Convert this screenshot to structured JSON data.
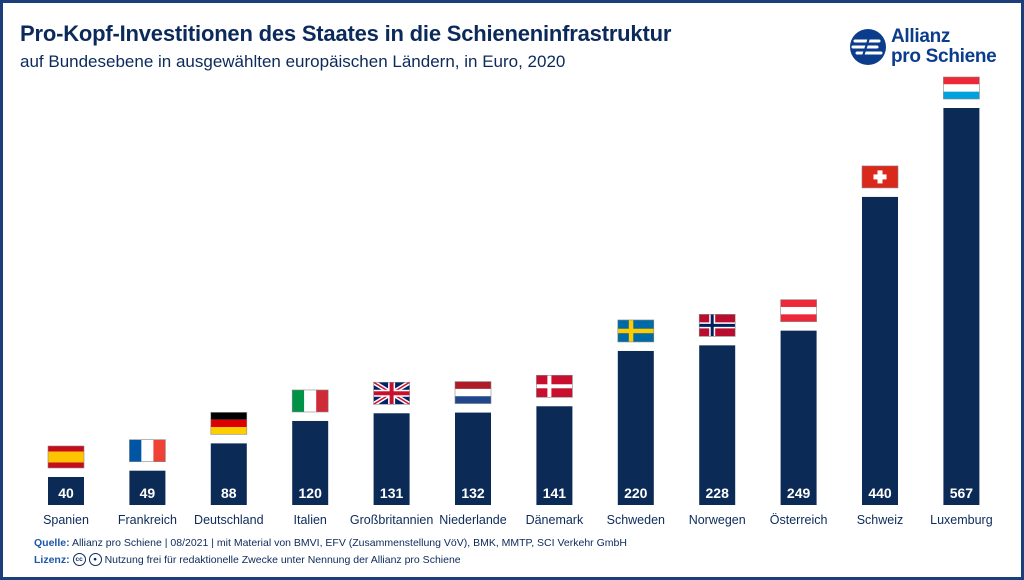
{
  "header": {
    "title": "Pro-Kopf-Investitionen des Staates in die Schieneninfrastruktur",
    "subtitle": "auf Bundesebene in ausgewählten europäischen Ländern, in Euro, 2020"
  },
  "logo": {
    "line1": "Allianz",
    "line2": "pro Schiene"
  },
  "chart_data": {
    "type": "bar",
    "title": "Pro-Kopf-Investitionen des Staates in die Schieneninfrastruktur",
    "subtitle": "auf Bundesebene in ausgewählten europäischen Ländern, in Euro, 2020",
    "categories": [
      "Spanien",
      "Frankreich",
      "Deutschland",
      "Italien",
      "Großbritannien",
      "Niederlande",
      "Dänemark",
      "Schweden",
      "Norwegen",
      "Österreich",
      "Schweiz",
      "Luxemburg"
    ],
    "values": [
      40,
      49,
      88,
      120,
      131,
      132,
      141,
      220,
      228,
      249,
      440,
      567
    ],
    "flags": [
      "spain-flag-icon",
      "france-flag-icon",
      "germany-flag-icon",
      "italy-flag-icon",
      "uk-flag-icon",
      "netherlands-flag-icon",
      "denmark-flag-icon",
      "sweden-flag-icon",
      "norway-flag-icon",
      "austria-flag-icon",
      "switzerland-flag-icon",
      "luxembourg-flag-icon"
    ],
    "xlabel": "",
    "ylabel": "",
    "ylim": [
      0,
      567
    ],
    "bar_color": "#0c2a56",
    "value_label_color": "#ffffff"
  },
  "footer": {
    "source_label": "Quelle:",
    "source_text": "Allianz pro Schiene | 08/2021 | mit Material von BMVI, EFV (Zusammenstellung VöV), BMK, MMTP, SCI Verkehr GmbH",
    "license_label": "Lizenz:",
    "license_text": "Nutzung frei für redaktionelle Zwecke unter Nennung der Allianz pro Schiene"
  },
  "colors": {
    "brand": "#0b3d8c",
    "frame": "#1a3f7a",
    "text": "#0b2a5b"
  }
}
